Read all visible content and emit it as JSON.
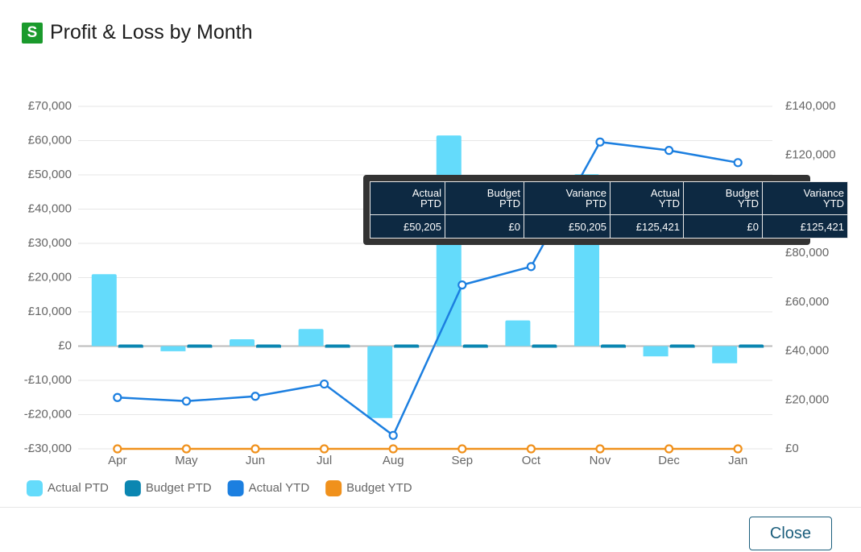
{
  "header": {
    "logo": "S",
    "title": "Profit & Loss by Month"
  },
  "chart_data": {
    "type": "bar-line",
    "categories": [
      "Apr",
      "May",
      "Jun",
      "Jul",
      "Aug",
      "Sep",
      "Oct",
      "Nov",
      "Dec",
      "Jan"
    ],
    "series": [
      {
        "name": "Actual PTD",
        "type": "bar",
        "color": "#64dbfb",
        "values": [
          21000,
          -1500,
          2000,
          5000,
          -21000,
          61500,
          7500,
          50205,
          -3000,
          -5000
        ]
      },
      {
        "name": "Budget PTD",
        "type": "bar",
        "color": "#0b86b1",
        "values": [
          0,
          0,
          0,
          0,
          0,
          0,
          0,
          0,
          0,
          0
        ]
      },
      {
        "name": "Actual YTD",
        "type": "line",
        "axis": "y2",
        "color": "#1c7fe0",
        "values": [
          21000,
          19500,
          21500,
          26500,
          5500,
          67000,
          74500,
          125421,
          122000,
          117000
        ]
      },
      {
        "name": "Budget YTD",
        "type": "line",
        "axis": "y2",
        "color": "#f0911c",
        "values": [
          0,
          0,
          0,
          0,
          0,
          0,
          0,
          0,
          0,
          0
        ]
      }
    ],
    "ylim": [
      -30000,
      70000
    ],
    "yticks": [
      {
        "value": -30000,
        "label": "-£30,000"
      },
      {
        "value": -20000,
        "label": "-£20,000"
      },
      {
        "value": -10000,
        "label": "-£10,000"
      },
      {
        "value": 0,
        "label": "£0"
      },
      {
        "value": 10000,
        "label": "£10,000"
      },
      {
        "value": 20000,
        "label": "£20,000"
      },
      {
        "value": 30000,
        "label": "£30,000"
      },
      {
        "value": 40000,
        "label": "£40,000"
      },
      {
        "value": 50000,
        "label": "£50,000"
      },
      {
        "value": 60000,
        "label": "£60,000"
      },
      {
        "value": 70000,
        "label": "£70,000"
      }
    ],
    "y2lim": [
      0,
      140000
    ],
    "y2ticks": [
      {
        "value": 0,
        "label": "£0"
      },
      {
        "value": 20000,
        "label": "£20,000"
      },
      {
        "value": 40000,
        "label": "£40,000"
      },
      {
        "value": 60000,
        "label": "£60,000"
      },
      {
        "value": 80000,
        "label": "£80,000"
      },
      {
        "value": 100000,
        "label": "£100,000"
      },
      {
        "value": 120000,
        "label": "£120,000"
      },
      {
        "value": 140000,
        "label": "£140,000"
      }
    ],
    "grid": true,
    "legend": "bottom-left"
  },
  "tooltip": {
    "headers": [
      "Actual PTD",
      "Budget PTD",
      "Variance PTD",
      "Actual YTD",
      "Budget YTD",
      "Variance YTD"
    ],
    "values": [
      "£50,205",
      "£0",
      "£50,205",
      "£125,421",
      "£0",
      "£125,421"
    ]
  },
  "footer": {
    "close": "Close"
  }
}
